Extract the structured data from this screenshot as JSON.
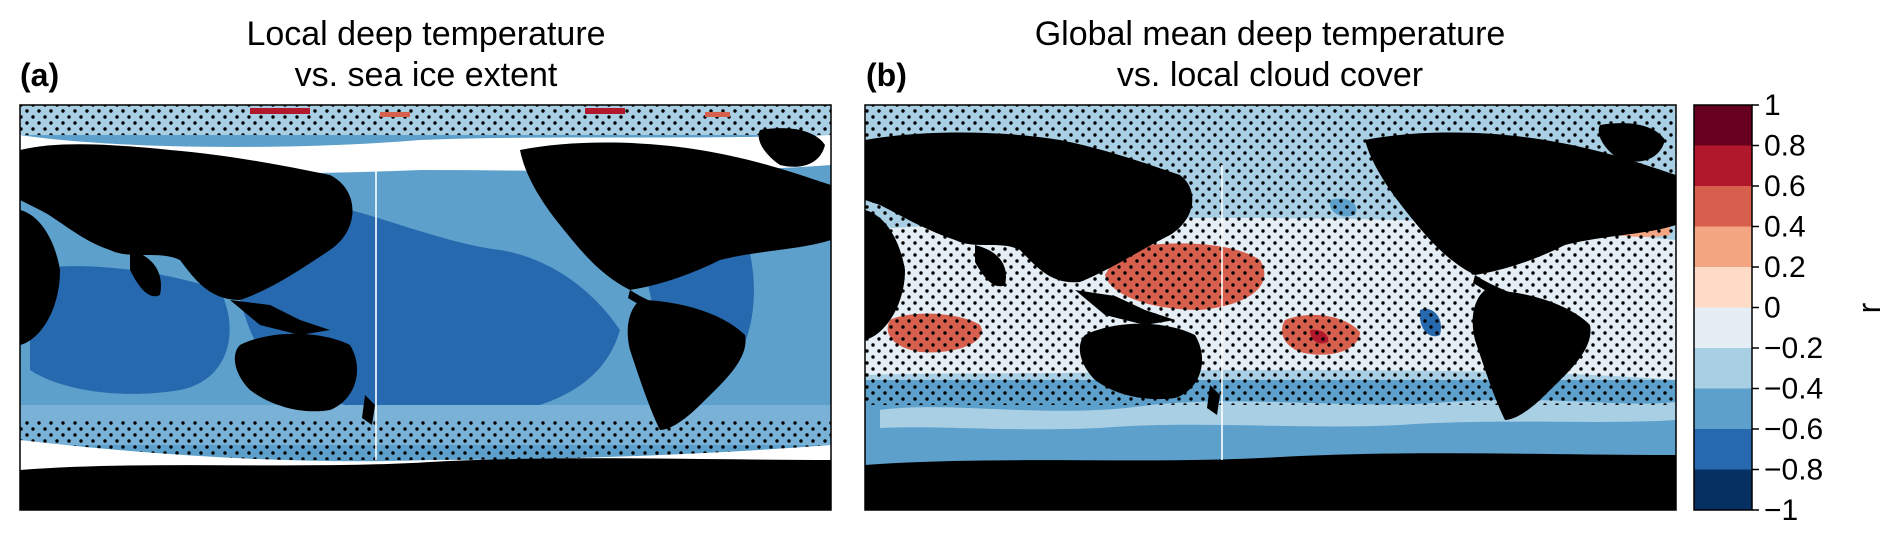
{
  "panel_a": {
    "label": "(a)",
    "title_line1": "Local deep temperature",
    "title_line2": "vs. sea ice extent"
  },
  "panel_b": {
    "label": "(b)",
    "title_line1": "Global mean deep temperature",
    "title_line2": "vs. local cloud cover"
  },
  "colorbar": {
    "label": "r",
    "ticks": [
      "1",
      "0.8",
      "0.6",
      "0.4",
      "0.2",
      "0",
      "−0.2",
      "−0.4",
      "−0.6",
      "−0.8",
      "−1"
    ],
    "colors": [
      "#67001f",
      "#b2182b",
      "#d6604d",
      "#f4a582",
      "#fddbc7",
      "#e4eef4",
      "#a9cfe5",
      "#5ca0cb",
      "#2769ae",
      "#053061"
    ]
  },
  "colors": {
    "land": "#000000",
    "sea_ice": "#ffffff",
    "stipple": "#000000"
  }
}
